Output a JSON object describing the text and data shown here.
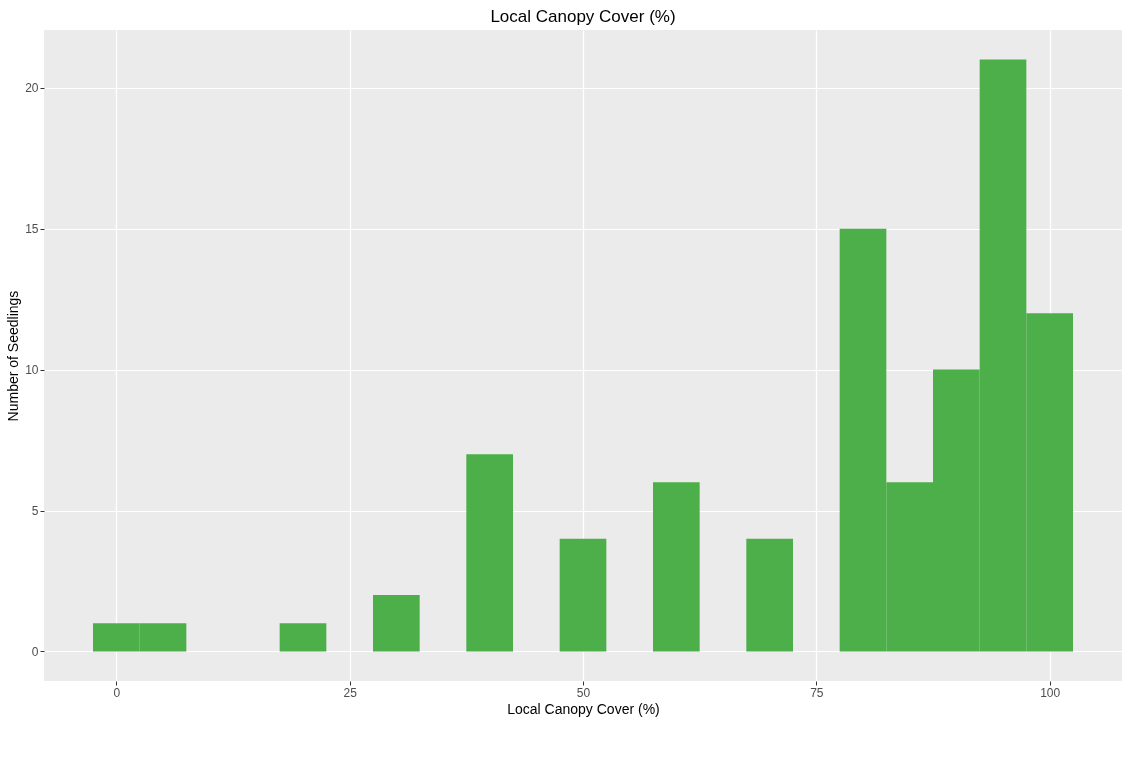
{
  "chart_data": {
    "type": "histogram",
    "title": "Local Canopy Cover (%)",
    "xlabel": "Local Canopy Cover (%)",
    "ylabel": "Number of Seedlings",
    "bins": [
      -2.5,
      2.5,
      7.5,
      12.5,
      17.5,
      22.5,
      27.5,
      32.5,
      37.5,
      42.5,
      47.5,
      52.5,
      57.5,
      62.5,
      67.5,
      72.5,
      77.5,
      82.5,
      87.5,
      92.5,
      97.5,
      102.5
    ],
    "values": [
      1,
      1,
      0,
      0,
      1,
      0,
      2,
      0,
      7,
      0,
      4,
      0,
      6,
      0,
      4,
      0,
      15,
      6,
      10,
      21,
      12
    ],
    "color": "#4daf4a",
    "xlim": [
      -7.75,
      107.75
    ],
    "ylim": [
      -1.05,
      22.05
    ],
    "xticks": [
      0,
      25,
      50,
      75,
      100
    ],
    "yticks": [
      0,
      5,
      10,
      15,
      20
    ],
    "grid": true
  }
}
